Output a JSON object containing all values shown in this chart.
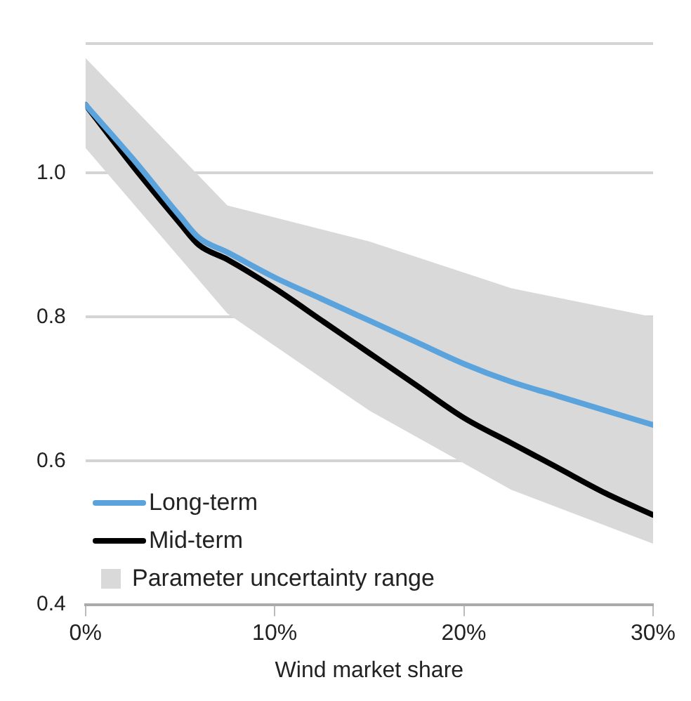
{
  "chart_data": {
    "type": "line",
    "xlabel": "Wind market share",
    "xlim": [
      0,
      30
    ],
    "xticks": [
      {
        "value": 0,
        "label": "0%"
      },
      {
        "value": 10,
        "label": "10%"
      },
      {
        "value": 20,
        "label": "20%"
      },
      {
        "value": 30,
        "label": "30%"
      }
    ],
    "ylim": [
      0.4,
      1.18
    ],
    "yticks": [
      0.4,
      0.6,
      0.8,
      {
        "value": 1,
        "label": "1.0"
      },
      {
        "value": 1.18,
        "label": null
      }
    ],
    "grid": "y",
    "legend": "bottom left",
    "line_style": "solid",
    "marker": "none",
    "series": [
      {
        "name": "Long-term",
        "color": "#5ba3dc",
        "x": [
          0,
          2.5,
          5,
          6,
          7.5,
          10,
          12.5,
          15,
          17.5,
          20,
          22.5,
          25,
          27.5,
          30
        ],
        "values": [
          1.095,
          1.02,
          0.94,
          0.91,
          0.89,
          0.855,
          0.825,
          0.795,
          0.765,
          0.735,
          0.71,
          0.69,
          0.67,
          0.65
        ]
      },
      {
        "name": "Mid-term",
        "color": "#000000",
        "x": [
          0,
          2.5,
          5,
          6,
          7.5,
          10,
          12.5,
          15,
          17.5,
          20,
          22.5,
          25,
          27.5,
          30
        ],
        "values": [
          1.095,
          1.01,
          0.93,
          0.9,
          0.88,
          0.84,
          0.795,
          0.75,
          0.705,
          0.66,
          0.625,
          0.59,
          0.555,
          0.525
        ]
      },
      {
        "name": "Parameter uncertainty range",
        "type": "area",
        "color": "#d9d9d9",
        "x": [
          0,
          7.5,
          15,
          22.5,
          30
        ],
        "values": [
          null,
          null,
          null,
          null,
          null
        ],
        "lower": [
          1.035,
          0.805,
          0.67,
          0.56,
          0.485
        ],
        "upper": [
          1.16,
          0.955,
          0.905,
          0.84,
          0.8
        ]
      }
    ]
  }
}
